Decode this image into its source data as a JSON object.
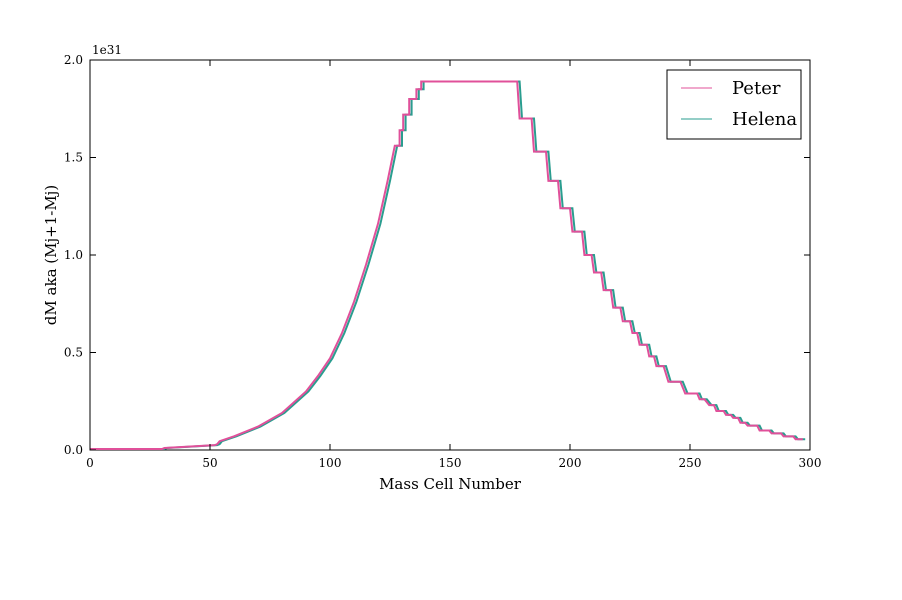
{
  "chart_data": {
    "type": "line",
    "xlabel": "Mass Cell Number",
    "ylabel": "dM aka (Mj+1-Mj)",
    "y_offset_text": "1e31",
    "xlim": [
      0,
      300
    ],
    "ylim": [
      0,
      2.0
    ],
    "x_ticks": [
      0,
      50,
      100,
      150,
      200,
      250,
      300
    ],
    "x_tick_labels": [
      "0",
      "50",
      "100",
      "150",
      "200",
      "250",
      "300"
    ],
    "y_ticks": [
      0,
      0.5,
      1.0,
      1.5,
      2.0
    ],
    "y_tick_labels": [
      "0.0",
      "0.5",
      "1.0",
      "1.5",
      "2.0"
    ],
    "grid": false,
    "legend_position": "top-right",
    "series": [
      {
        "name": "Peter",
        "color": "#e0509a",
        "points": [
          [
            0,
            0.005
          ],
          [
            30,
            0.005
          ],
          [
            31,
            0.01
          ],
          [
            52,
            0.025
          ],
          [
            53,
            0.03
          ],
          [
            54,
            0.045
          ],
          [
            60,
            0.07
          ],
          [
            70,
            0.12
          ],
          [
            80,
            0.19
          ],
          [
            90,
            0.3
          ],
          [
            95,
            0.38
          ],
          [
            100,
            0.47
          ],
          [
            105,
            0.6
          ],
          [
            110,
            0.76
          ],
          [
            115,
            0.95
          ],
          [
            120,
            1.16
          ],
          [
            124,
            1.38
          ],
          [
            127,
            1.56
          ],
          [
            129,
            1.56
          ],
          [
            129,
            1.64
          ],
          [
            130.5,
            1.64
          ],
          [
            130.5,
            1.72
          ],
          [
            133,
            1.72
          ],
          [
            133,
            1.8
          ],
          [
            136,
            1.8
          ],
          [
            136,
            1.85
          ],
          [
            138,
            1.85
          ],
          [
            138,
            1.89
          ],
          [
            178,
            1.89
          ],
          [
            179,
            1.7
          ],
          [
            184,
            1.7
          ],
          [
            185,
            1.53
          ],
          [
            190,
            1.53
          ],
          [
            191,
            1.38
          ],
          [
            195,
            1.38
          ],
          [
            196,
            1.24
          ],
          [
            200,
            1.24
          ],
          [
            201,
            1.12
          ],
          [
            205,
            1.12
          ],
          [
            206,
            1.0
          ],
          [
            209,
            1.0
          ],
          [
            210,
            0.91
          ],
          [
            213,
            0.91
          ],
          [
            214,
            0.82
          ],
          [
            217,
            0.82
          ],
          [
            218,
            0.73
          ],
          [
            221,
            0.73
          ],
          [
            222,
            0.66
          ],
          [
            225,
            0.66
          ],
          [
            226,
            0.6
          ],
          [
            228,
            0.6
          ],
          [
            229,
            0.54
          ],
          [
            232,
            0.54
          ],
          [
            233,
            0.48
          ],
          [
            235,
            0.48
          ],
          [
            236,
            0.43
          ],
          [
            239,
            0.43
          ],
          [
            241,
            0.35
          ],
          [
            246,
            0.35
          ],
          [
            248,
            0.29
          ],
          [
            253,
            0.29
          ],
          [
            254,
            0.26
          ],
          [
            256,
            0.26
          ],
          [
            258,
            0.23
          ],
          [
            260,
            0.23
          ],
          [
            261,
            0.2
          ],
          [
            264,
            0.2
          ],
          [
            265,
            0.18
          ],
          [
            267,
            0.18
          ],
          [
            268,
            0.165
          ],
          [
            270,
            0.165
          ],
          [
            271,
            0.14
          ],
          [
            273,
            0.14
          ],
          [
            274,
            0.125
          ],
          [
            278,
            0.125
          ],
          [
            279,
            0.1
          ],
          [
            283,
            0.1
          ],
          [
            284,
            0.085
          ],
          [
            288,
            0.085
          ],
          [
            289,
            0.07
          ],
          [
            293,
            0.07
          ],
          [
            294,
            0.055
          ],
          [
            297,
            0.055
          ]
        ]
      },
      {
        "name": "Helena",
        "color": "#2a9d8f",
        "x_shift": 1.0,
        "points": [
          [
            0,
            0.005
          ],
          [
            30,
            0.005
          ],
          [
            31,
            0.01
          ],
          [
            52,
            0.025
          ],
          [
            53,
            0.03
          ],
          [
            54,
            0.045
          ],
          [
            60,
            0.07
          ],
          [
            70,
            0.12
          ],
          [
            80,
            0.19
          ],
          [
            90,
            0.3
          ],
          [
            95,
            0.38
          ],
          [
            100,
            0.47
          ],
          [
            105,
            0.6
          ],
          [
            110,
            0.76
          ],
          [
            115,
            0.95
          ],
          [
            120,
            1.16
          ],
          [
            124,
            1.38
          ],
          [
            127,
            1.56
          ],
          [
            129,
            1.56
          ],
          [
            129,
            1.64
          ],
          [
            130.5,
            1.64
          ],
          [
            130.5,
            1.72
          ],
          [
            133,
            1.72
          ],
          [
            133,
            1.8
          ],
          [
            136,
            1.8
          ],
          [
            136,
            1.85
          ],
          [
            138,
            1.85
          ],
          [
            138,
            1.89
          ],
          [
            178,
            1.89
          ],
          [
            179,
            1.7
          ],
          [
            184,
            1.7
          ],
          [
            185,
            1.53
          ],
          [
            190,
            1.53
          ],
          [
            191,
            1.38
          ],
          [
            195,
            1.38
          ],
          [
            196,
            1.24
          ],
          [
            200,
            1.24
          ],
          [
            201,
            1.12
          ],
          [
            205,
            1.12
          ],
          [
            206,
            1.0
          ],
          [
            209,
            1.0
          ],
          [
            210,
            0.91
          ],
          [
            213,
            0.91
          ],
          [
            214,
            0.82
          ],
          [
            217,
            0.82
          ],
          [
            218,
            0.73
          ],
          [
            221,
            0.73
          ],
          [
            222,
            0.66
          ],
          [
            225,
            0.66
          ],
          [
            226,
            0.6
          ],
          [
            228,
            0.6
          ],
          [
            229,
            0.54
          ],
          [
            232,
            0.54
          ],
          [
            233,
            0.48
          ],
          [
            235,
            0.48
          ],
          [
            236,
            0.43
          ],
          [
            239,
            0.43
          ],
          [
            241,
            0.35
          ],
          [
            246,
            0.35
          ],
          [
            248,
            0.29
          ],
          [
            253,
            0.29
          ],
          [
            254,
            0.26
          ],
          [
            256,
            0.26
          ],
          [
            258,
            0.23
          ],
          [
            260,
            0.23
          ],
          [
            261,
            0.2
          ],
          [
            264,
            0.2
          ],
          [
            265,
            0.18
          ],
          [
            267,
            0.18
          ],
          [
            268,
            0.165
          ],
          [
            270,
            0.165
          ],
          [
            271,
            0.14
          ],
          [
            273,
            0.14
          ],
          [
            274,
            0.125
          ],
          [
            278,
            0.125
          ],
          [
            279,
            0.1
          ],
          [
            283,
            0.1
          ],
          [
            284,
            0.085
          ],
          [
            288,
            0.085
          ],
          [
            289,
            0.07
          ],
          [
            293,
            0.07
          ],
          [
            294,
            0.055
          ],
          [
            297,
            0.055
          ]
        ]
      }
    ]
  }
}
